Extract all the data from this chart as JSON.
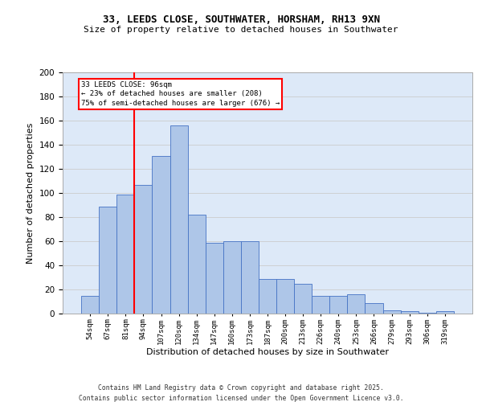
{
  "title_line1": "33, LEEDS CLOSE, SOUTHWATER, HORSHAM, RH13 9XN",
  "title_line2": "Size of property relative to detached houses in Southwater",
  "xlabel": "Distribution of detached houses by size in Southwater",
  "ylabel": "Number of detached properties",
  "bar_labels": [
    "54sqm",
    "67sqm",
    "81sqm",
    "94sqm",
    "107sqm",
    "120sqm",
    "134sqm",
    "147sqm",
    "160sqm",
    "173sqm",
    "187sqm",
    "200sqm",
    "213sqm",
    "226sqm",
    "240sqm",
    "253sqm",
    "266sqm",
    "279sqm",
    "293sqm",
    "306sqm",
    "319sqm"
  ],
  "bar_values": [
    15,
    89,
    99,
    107,
    131,
    156,
    82,
    59,
    60,
    60,
    29,
    29,
    25,
    15,
    15,
    16,
    9,
    3,
    2,
    1,
    2
  ],
  "bar_color": "#aec6e8",
  "bar_edge_color": "#4472c4",
  "grid_color": "#cccccc",
  "background_color": "#dde9f8",
  "vline_color": "red",
  "vline_x_index": 3,
  "annotation_text": "33 LEEDS CLOSE: 96sqm\n← 23% of detached houses are smaller (208)\n75% of semi-detached houses are larger (676) →",
  "annotation_box_color": "white",
  "annotation_box_edge_color": "red",
  "footer_line1": "Contains HM Land Registry data © Crown copyright and database right 2025.",
  "footer_line2": "Contains public sector information licensed under the Open Government Licence v3.0.",
  "ylim": [
    0,
    200
  ],
  "yticks": [
    0,
    20,
    40,
    60,
    80,
    100,
    120,
    140,
    160,
    180,
    200
  ],
  "fig_width": 6.0,
  "fig_height": 5.0,
  "dpi": 100
}
